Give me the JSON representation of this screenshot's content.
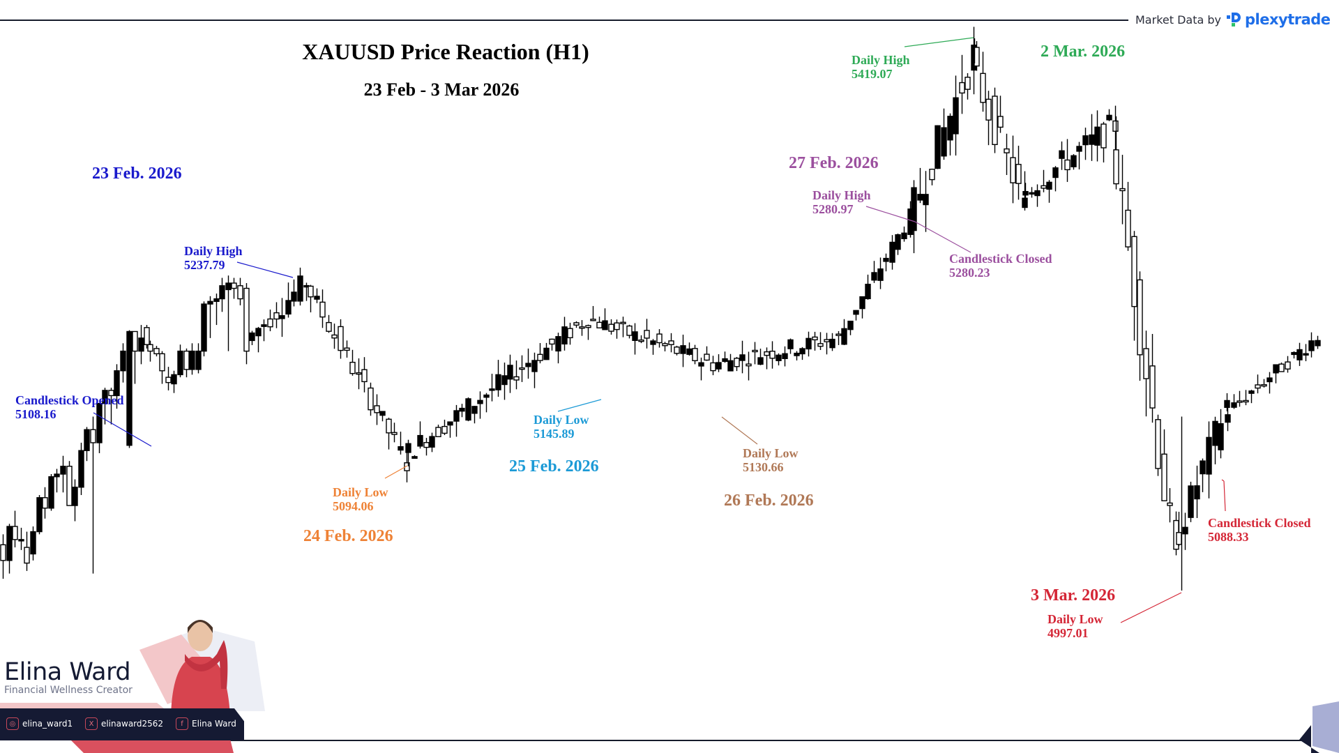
{
  "header": {
    "title": "XAUUSD Price Reaction (H1)",
    "subtitle": "23 Feb - 3 Mar 2026",
    "brand_prefix": "Market Data by",
    "brand_name": "plexytrade",
    "brand_icon": "plexytrade-logo-icon"
  },
  "colors": {
    "feb23": "#1a1acc",
    "feb24": "#ee8236",
    "feb25": "#1c9ad6",
    "feb26": "#b07856",
    "feb27": "#9b4f9e",
    "mar2": "#2eaa56",
    "mar3": "#d42636",
    "bull_candle": "#000000",
    "bear_candle": "#ffffff",
    "brand_blue": "#1e6ee8",
    "brand_green": "#2ec26a",
    "navy": "#151a33",
    "accent_red": "#d9505e"
  },
  "annotations": {
    "feb23": {
      "date": "23 Feb. 2026",
      "open_label": "Candlestick Opened",
      "open_value": "5108.16",
      "high_label": "Daily High",
      "high_value": "5237.79"
    },
    "feb24": {
      "date": "24 Feb. 2026",
      "low_label": "Daily Low",
      "low_value": "5094.06"
    },
    "feb25": {
      "date": "25 Feb. 2026",
      "low_label": "Daily Low",
      "low_value": "5145.89"
    },
    "feb26": {
      "date": "26 Feb. 2026",
      "low_label": "Daily Low",
      "low_value": "5130.66"
    },
    "feb27": {
      "date": "27 Feb. 2026",
      "high_label": "Daily High",
      "high_value": "5280.97",
      "close_label": "Candlestick Closed",
      "close_value": "5280.23"
    },
    "mar2": {
      "date": "2 Mar. 2026",
      "high_label": "Daily High",
      "high_value": "5419.07"
    },
    "mar3": {
      "date": "3 Mar. 2026",
      "low_label": "Daily Low",
      "low_value": "4997.01",
      "close_label": "Candlestick Closed",
      "close_value": "5088.33"
    }
  },
  "persona": {
    "name": "Elina Ward",
    "role": "Financial Wellness Creator",
    "socials": [
      {
        "icon": "instagram-icon",
        "glyph": "◎",
        "handle": "elina_ward1"
      },
      {
        "icon": "x-icon",
        "glyph": "X",
        "handle": "elinaward2562"
      },
      {
        "icon": "facebook-icon",
        "glyph": "f",
        "handle": "Elina Ward"
      }
    ]
  },
  "chart_data": {
    "type": "candlestick",
    "title": "XAUUSD Price Reaction (H1)",
    "subtitle": "23 Feb - 3 Mar 2026",
    "timeframe": "H1",
    "xlabel": "",
    "ylabel": "",
    "grid": false,
    "axes_visible": false,
    "candle_style": "filled black = bullish, hollow = bearish",
    "key_levels": [
      {
        "date": "23 Feb. 2026",
        "label": "Candlestick Opened",
        "value": 5108.16
      },
      {
        "date": "23 Feb. 2026",
        "label": "Daily High",
        "value": 5237.79
      },
      {
        "date": "24 Feb. 2026",
        "label": "Daily Low",
        "value": 5094.06
      },
      {
        "date": "25 Feb. 2026",
        "label": "Daily Low",
        "value": 5145.89
      },
      {
        "date": "26 Feb. 2026",
        "label": "Daily Low",
        "value": 5130.66
      },
      {
        "date": "27 Feb. 2026",
        "label": "Daily High",
        "value": 5280.97
      },
      {
        "date": "27 Feb. 2026",
        "label": "Candlestick Closed",
        "value": 5280.23
      },
      {
        "date": "2 Mar. 2026",
        "label": "Daily High",
        "value": 5419.07
      },
      {
        "date": "3 Mar. 2026",
        "label": "Daily Low",
        "value": 4997.01
      },
      {
        "date": "3 Mar. 2026",
        "label": "Candlestick Closed",
        "value": 5088.33
      }
    ],
    "ylim": [
      4990,
      5425
    ],
    "candles_ohlc_approx": [
      [
        5032,
        5040,
        5006,
        5020
      ],
      [
        5020,
        5048,
        5010,
        5046
      ],
      [
        5046,
        5058,
        5030,
        5036
      ],
      [
        5036,
        5045,
        5028,
        5036
      ],
      [
        5030,
        5042,
        5012,
        5018
      ],
      [
        5025,
        5046,
        5020,
        5042
      ],
      [
        5042,
        5070,
        5040,
        5068
      ],
      [
        5068,
        5076,
        5052,
        5060
      ],
      [
        5060,
        5086,
        5058,
        5084
      ],
      [
        5084,
        5090,
        5072,
        5086
      ],
      [
        5086,
        5100,
        5072,
        5092
      ],
      [
        5092,
        5096,
        5066,
        5062
      ],
      [
        5062,
        5082,
        5050,
        5076
      ],
      [
        5076,
        5110,
        5070,
        5104
      ],
      [
        5104,
        5122,
        5096,
        5120
      ],
      [
        5120,
        5130,
        5010,
        5110
      ],
      [
        5110,
        5140,
        5102,
        5140
      ],
      [
        5140,
        5152,
        5124,
        5150
      ],
      [
        5150,
        5152,
        5124,
        5146
      ],
      [
        5146,
        5170,
        5136,
        5165
      ],
      [
        5165,
        5186,
        5156,
        5180
      ],
      [
        5108,
        5196,
        5106,
        5195
      ],
      [
        5195,
        5195,
        5155,
        5180
      ],
      [
        5180,
        5200,
        5170,
        5190
      ],
      [
        5198,
        5200,
        5182,
        5185
      ],
      [
        5185,
        5188,
        5172,
        5180
      ],
      [
        5182,
        5184,
        5176,
        5178
      ],
      [
        5178,
        5180,
        5155,
        5165
      ],
      [
        5160,
        5168,
        5150,
        5156
      ],
      [
        5155,
        5165,
        5148,
        5162
      ],
      [
        5162,
        5185,
        5160,
        5180
      ],
      [
        5180,
        5182,
        5160,
        5166
      ],
      [
        5166,
        5186,
        5162,
        5180
      ],
      [
        5166,
        5186,
        5163,
        5180
      ],
      [
        5180,
        5218,
        5176,
        5216
      ],
      [
        5216,
        5222,
        5190,
        5218
      ],
      [
        5218,
        5224,
        5200,
        5220
      ],
      [
        5220,
        5236,
        5210,
        5230
      ],
      [
        5227,
        5237.79,
        5180,
        5232
      ],
      [
        5232,
        5236,
        5220,
        5228
      ],
      [
        5230,
        5236,
        5215,
        5220
      ],
      [
        5228,
        5232,
        5170,
        5180
      ]
    ]
  }
}
